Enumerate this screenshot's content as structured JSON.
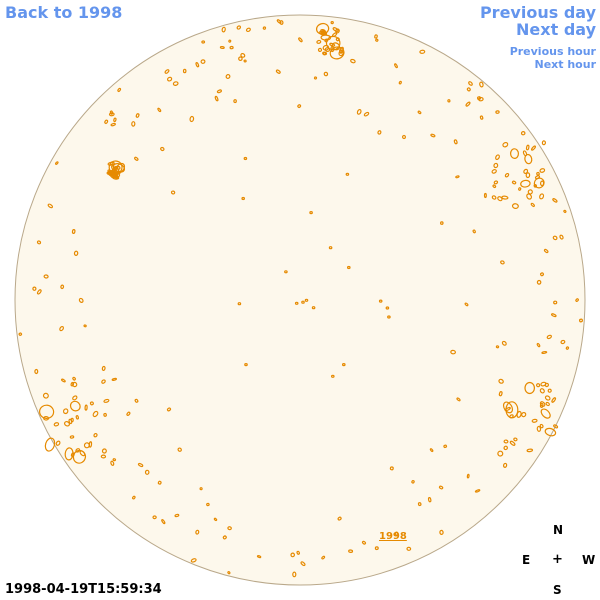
{
  "nav": {
    "back_label": "Back to 1998",
    "previous_day_label": "Previous day",
    "next_day_label": "Next day",
    "previous_hour_label": "Previous hour",
    "next_hour_label": "Next hour"
  },
  "map": {
    "year_link": "1998",
    "timestamp": "1998-04-19T15:59:34",
    "disk_fill": "#fdf8ec",
    "disk_stroke": "#b9a88a",
    "contour_color": "#e68a00"
  },
  "compass": {
    "north": "N",
    "east": "E",
    "center": "+",
    "west": "W",
    "south": "S"
  },
  "colors": {
    "link": "#6495ed",
    "text": "#000000"
  }
}
